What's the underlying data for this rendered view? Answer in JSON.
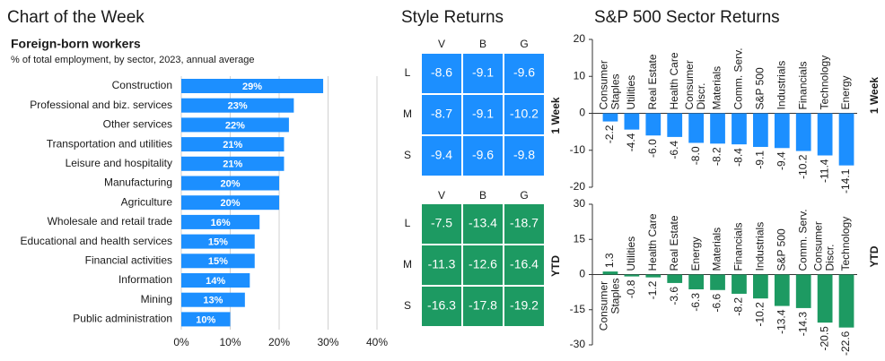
{
  "header": {
    "title": "Chart of the Week",
    "style_title": "Style Returns",
    "sector_title": "S&P 500 Sector Returns"
  },
  "chart_data": [
    {
      "type": "bar",
      "orientation": "horizontal",
      "title": "Foreign-born workers",
      "subtitle": "% of total employment, by sector, 2023, annual average",
      "categories": [
        "Construction",
        "Professional and biz. services",
        "Other services",
        "Transportation and utilities",
        "Leisure and hospitality",
        "Manufacturing",
        "Agriculture",
        "Wholesale and retail trade",
        "Educational and health services",
        "Financial activities",
        "Information",
        "Mining",
        "Public administration"
      ],
      "values": [
        29,
        23,
        22,
        21,
        21,
        20,
        20,
        16,
        15,
        15,
        14,
        13,
        10
      ],
      "value_labels": [
        "29%",
        "23%",
        "22%",
        "21%",
        "21%",
        "20%",
        "20%",
        "16%",
        "15%",
        "15%",
        "14%",
        "13%",
        "10%"
      ],
      "color": "#1c8fff",
      "xlim": [
        0,
        40
      ],
      "xticks": [
        {
          "value": 0,
          "label": "0%"
        },
        {
          "value": 10,
          "label": "10%"
        },
        {
          "value": 20,
          "label": "20%"
        },
        {
          "value": 30,
          "label": "30%"
        },
        {
          "value": 40,
          "label": "40%"
        }
      ],
      "grid": true
    },
    {
      "type": "heatmap",
      "label": "1 Week",
      "columns": [
        "V",
        "B",
        "G"
      ],
      "rows": [
        "L",
        "M",
        "S"
      ],
      "values": [
        [
          -8.6,
          -9.1,
          -9.6
        ],
        [
          -8.7,
          -9.1,
          -10.2
        ],
        [
          -9.4,
          -9.6,
          -9.8
        ]
      ],
      "color": "#1c8fff"
    },
    {
      "type": "heatmap",
      "label": "YTD",
      "columns": [
        "V",
        "B",
        "G"
      ],
      "rows": [
        "L",
        "M",
        "S"
      ],
      "values": [
        [
          -7.5,
          -13.4,
          -18.7
        ],
        [
          -11.3,
          -12.6,
          -16.4
        ],
        [
          -16.3,
          -17.8,
          -19.2
        ]
      ],
      "color": "#1d9a62"
    },
    {
      "type": "bar",
      "orientation": "vertical",
      "label": "1 Week",
      "categories": [
        "Consumer Staples",
        "Utilities",
        "Real Estate",
        "Health Care",
        "Consumer Discr.",
        "Materials",
        "Comm. Serv.",
        "S&P 500",
        "Industrials",
        "Financials",
        "Technology",
        "Energy"
      ],
      "values": [
        -2.2,
        -4.4,
        -6,
        -6.4,
        -8,
        -8.2,
        -8.4,
        -9.1,
        -9.4,
        -10.2,
        -11.4,
        -14.1
      ],
      "value_labels": [
        "-2.2",
        "-4.4",
        "-6.0",
        "-6.4",
        "-8.0",
        "-8.2",
        "-8.4",
        "-9.1",
        "-9.4",
        "-10.2",
        "-11.4",
        "-14.1"
      ],
      "color": "#1c8fff",
      "ylim": [
        -20,
        20
      ],
      "yticks": [
        -20,
        -10,
        0,
        10,
        20
      ]
    },
    {
      "type": "bar",
      "orientation": "vertical",
      "label": "YTD",
      "categories": [
        "Consumer Staples",
        "Utilities",
        "Health Care",
        "Real Estate",
        "Energy",
        "Materials",
        "Financials",
        "Industrials",
        "S&P 500",
        "Comm. Serv.",
        "Consumer Discr.",
        "Technology"
      ],
      "values": [
        1.3,
        -0.8,
        -1.2,
        -3.6,
        -6.3,
        -6.6,
        -8.2,
        -10.2,
        -13.4,
        -14.3,
        -20.5,
        -22.6
      ],
      "value_labels": [
        "1.3",
        "-0.8",
        "-1.2",
        "-3.6",
        "-6.3",
        "-6.6",
        "-8.2",
        "-10.2",
        "-13.4",
        "-14.3",
        "-20.5",
        "-22.6"
      ],
      "color": "#1d9a62",
      "ylim": [
        -30,
        30
      ],
      "yticks": [
        -30,
        -15,
        0,
        15,
        30
      ]
    }
  ]
}
